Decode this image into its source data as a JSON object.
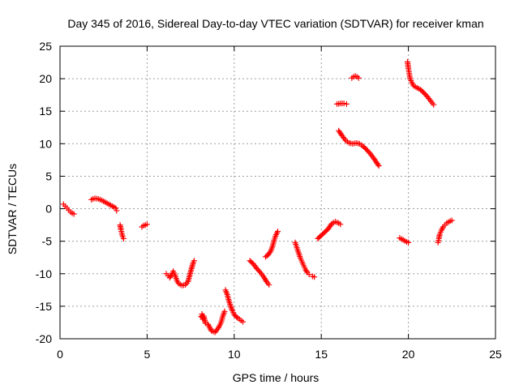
{
  "chart_data": {
    "type": "scatter",
    "title": "Day 345 of 2016, Sidereal Day-to-day VTEC variation (SDTVAR) for receiver kman",
    "xlabel": "GPS time / hours",
    "ylabel": "SDTVAR / TECUs",
    "xlim": [
      0,
      25
    ],
    "ylim": [
      -20,
      25
    ],
    "xticks": [
      "0",
      "5",
      "10",
      "15",
      "20",
      "25"
    ],
    "yticks": [
      "-20",
      "-15",
      "-10",
      "-5",
      "0",
      "5",
      "10",
      "15",
      "20",
      "25"
    ],
    "grid": true,
    "marker": "plus",
    "color": "#ff0000",
    "series": [
      {
        "values": [
          [
            0.2,
            0.7
          ],
          [
            0.3,
            0.4
          ],
          [
            0.4,
            0.1
          ],
          [
            0.5,
            -0.2
          ],
          [
            0.6,
            -0.5
          ],
          [
            0.7,
            -0.7
          ],
          [
            0.8,
            -0.8
          ]
        ]
      },
      {
        "values": [
          [
            1.8,
            1.4
          ],
          [
            2.0,
            1.6
          ],
          [
            2.2,
            1.5
          ],
          [
            2.4,
            1.3
          ],
          [
            2.6,
            1.0
          ],
          [
            2.8,
            0.7
          ],
          [
            3.0,
            0.4
          ],
          [
            3.2,
            0.1
          ],
          [
            3.25,
            -0.3
          ]
        ]
      },
      {
        "values": [
          [
            3.45,
            -2.5
          ],
          [
            3.5,
            -3.2
          ],
          [
            3.55,
            -3.8
          ],
          [
            3.6,
            -4.3
          ],
          [
            3.65,
            -4.6
          ]
        ]
      },
      {
        "values": [
          [
            4.7,
            -2.8
          ],
          [
            4.8,
            -2.6
          ],
          [
            4.9,
            -2.5
          ],
          [
            5.0,
            -2.4
          ]
        ]
      },
      {
        "values": [
          [
            6.1,
            -10.0
          ],
          [
            6.2,
            -10.3
          ],
          [
            6.3,
            -10.6
          ],
          [
            6.4,
            -10.2
          ],
          [
            6.5,
            -9.6
          ],
          [
            6.6,
            -10.2
          ],
          [
            6.7,
            -11.0
          ],
          [
            6.8,
            -11.5
          ],
          [
            7.0,
            -11.8
          ],
          [
            7.2,
            -11.7
          ],
          [
            7.35,
            -11.2
          ],
          [
            7.45,
            -10.2
          ],
          [
            7.55,
            -9.2
          ],
          [
            7.65,
            -8.3
          ],
          [
            7.7,
            -8.0
          ]
        ]
      },
      {
        "values": [
          [
            8.1,
            -16.6
          ],
          [
            8.15,
            -16.2
          ],
          [
            8.2,
            -17.0
          ],
          [
            8.25,
            -16.5
          ],
          [
            8.35,
            -17.6
          ],
          [
            8.5,
            -17.8
          ],
          [
            8.7,
            -18.8
          ],
          [
            8.9,
            -19.0
          ],
          [
            9.1,
            -18.3
          ],
          [
            9.25,
            -17.5
          ],
          [
            9.35,
            -16.5
          ],
          [
            9.45,
            -15.8
          ]
        ]
      },
      {
        "values": [
          [
            9.5,
            -12.5
          ],
          [
            9.6,
            -13.2
          ],
          [
            9.7,
            -14.2
          ],
          [
            9.8,
            -15.0
          ],
          [
            9.9,
            -15.7
          ],
          [
            10.0,
            -16.3
          ],
          [
            10.2,
            -16.8
          ],
          [
            10.4,
            -17.2
          ],
          [
            10.5,
            -17.4
          ]
        ]
      },
      {
        "values": [
          [
            10.9,
            -8.0
          ],
          [
            11.1,
            -8.5
          ],
          [
            11.3,
            -9.2
          ],
          [
            11.5,
            -9.8
          ],
          [
            11.7,
            -10.5
          ],
          [
            11.85,
            -11.2
          ],
          [
            12.0,
            -11.7
          ]
        ]
      },
      {
        "values": [
          [
            11.8,
            -7.4
          ],
          [
            11.95,
            -7.1
          ],
          [
            12.1,
            -6.5
          ],
          [
            12.2,
            -5.8
          ],
          [
            12.3,
            -4.8
          ],
          [
            12.4,
            -4.0
          ],
          [
            12.5,
            -3.5
          ]
        ]
      },
      {
        "values": [
          [
            13.5,
            -5.2
          ],
          [
            13.6,
            -6.0
          ],
          [
            13.7,
            -6.8
          ],
          [
            13.8,
            -7.6
          ],
          [
            13.9,
            -8.2
          ],
          [
            14.0,
            -8.8
          ],
          [
            14.1,
            -9.4
          ],
          [
            14.2,
            -9.8
          ],
          [
            14.3,
            -10.1
          ]
        ]
      },
      {
        "values": [
          [
            14.5,
            -10.4
          ],
          [
            14.6,
            -10.5
          ]
        ]
      },
      {
        "values": [
          [
            14.8,
            -4.6
          ],
          [
            15.0,
            -4.1
          ],
          [
            15.2,
            -3.6
          ],
          [
            15.4,
            -3.1
          ],
          [
            15.5,
            -2.7
          ],
          [
            15.6,
            -2.3
          ],
          [
            15.8,
            -2.0
          ],
          [
            16.0,
            -2.2
          ],
          [
            16.1,
            -2.4
          ]
        ]
      },
      {
        "values": [
          [
            15.9,
            16.1
          ],
          [
            16.1,
            16.2
          ],
          [
            16.3,
            16.2
          ],
          [
            16.45,
            16.1
          ]
        ]
      },
      {
        "values": [
          [
            16.0,
            12.0
          ],
          [
            16.2,
            11.2
          ],
          [
            16.4,
            10.5
          ],
          [
            16.6,
            10.1
          ],
          [
            16.8,
            10.0
          ],
          [
            17.0,
            10.1
          ],
          [
            17.2,
            10.0
          ],
          [
            17.4,
            9.6
          ],
          [
            17.6,
            9.1
          ],
          [
            17.8,
            8.5
          ],
          [
            18.0,
            7.8
          ],
          [
            18.2,
            7.0
          ],
          [
            18.3,
            6.6
          ]
        ]
      },
      {
        "values": [
          [
            16.75,
            20.1
          ],
          [
            16.85,
            20.3
          ],
          [
            16.95,
            20.4
          ],
          [
            17.05,
            20.3
          ],
          [
            17.15,
            20.1
          ]
        ]
      },
      {
        "values": [
          [
            19.5,
            -4.5
          ],
          [
            19.7,
            -4.8
          ],
          [
            19.9,
            -5.1
          ],
          [
            20.0,
            -5.2
          ]
        ]
      },
      {
        "values": [
          [
            19.95,
            22.6
          ],
          [
            20.0,
            21.6
          ],
          [
            20.05,
            20.8
          ],
          [
            20.1,
            20.0
          ],
          [
            20.2,
            19.4
          ],
          [
            20.3,
            18.9
          ],
          [
            20.5,
            18.6
          ],
          [
            20.7,
            18.3
          ],
          [
            20.9,
            17.8
          ],
          [
            21.1,
            17.2
          ],
          [
            21.3,
            16.5
          ],
          [
            21.45,
            16.0
          ]
        ]
      },
      {
        "values": [
          [
            21.7,
            -5.2
          ],
          [
            21.75,
            -4.6
          ],
          [
            21.8,
            -3.9
          ],
          [
            21.9,
            -3.3
          ],
          [
            22.0,
            -2.8
          ],
          [
            22.1,
            -2.5
          ],
          [
            22.2,
            -2.2
          ],
          [
            22.4,
            -1.9
          ],
          [
            22.5,
            -1.8
          ]
        ]
      }
    ]
  }
}
